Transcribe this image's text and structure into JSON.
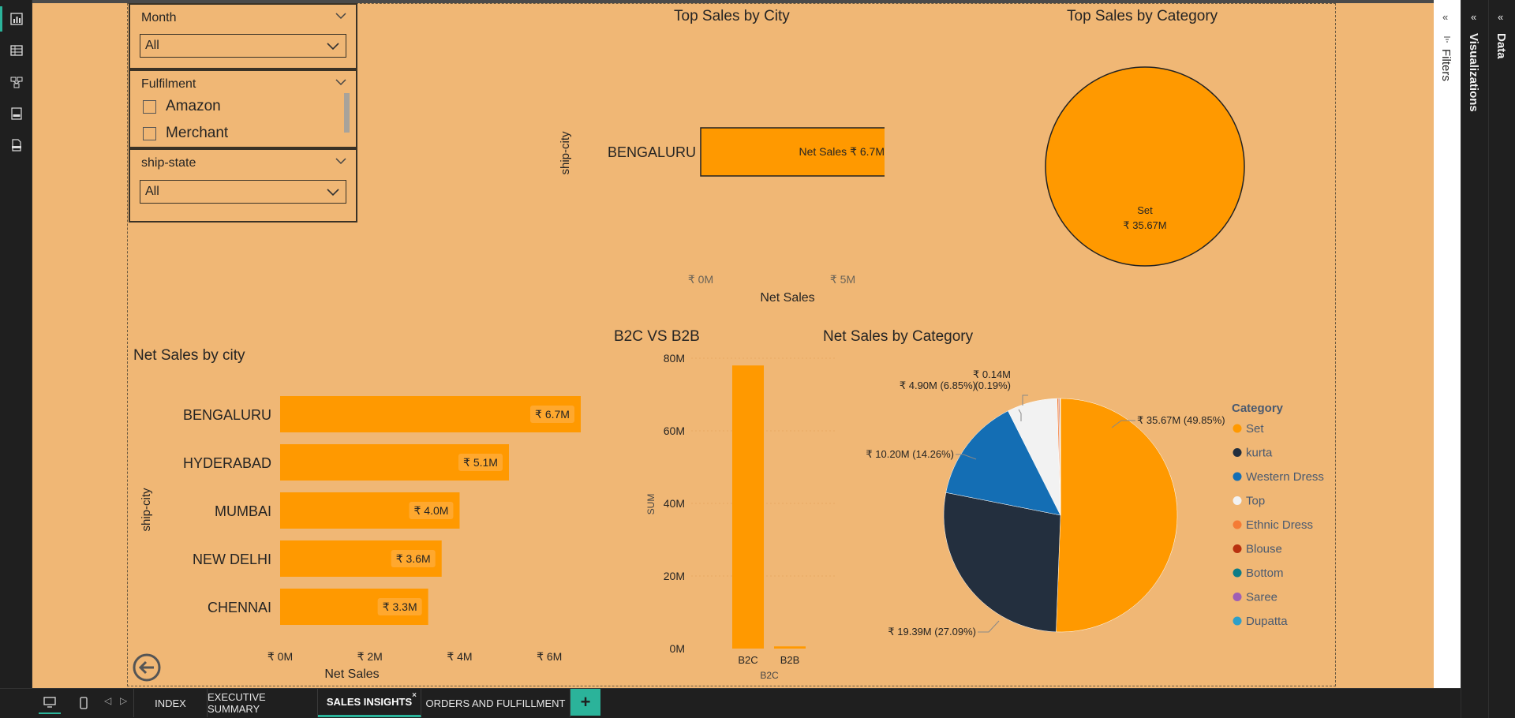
{
  "slicers": {
    "month": {
      "title": "Month",
      "value": "All"
    },
    "fulfilment": {
      "title": "Fulfilment",
      "options": [
        "Amazon",
        "Merchant"
      ]
    },
    "ship_state": {
      "title": "ship-state",
      "value": "All"
    }
  },
  "top_sales_city": {
    "title": "Top Sales by City",
    "y_axis_label": "ship-city",
    "x_axis_label": "Net Sales",
    "category": "BENGALURU",
    "bar_label": "Net Sales ₹ 6.7M",
    "ticks": [
      "₹ 0M",
      "₹ 5M"
    ]
  },
  "top_sales_category": {
    "title": "Top Sales by Category",
    "slice_name": "Set",
    "slice_value": "₹ 35.67M"
  },
  "net_sales_city": {
    "title": "Net Sales by city",
    "y_axis_label": "ship-city",
    "x_axis_label": "Net Sales",
    "ticks": [
      "₹ 0M",
      "₹ 2M",
      "₹ 4M",
      "₹ 6M"
    ],
    "bar_labels": [
      "₹ 6.7M",
      "₹ 5.1M",
      "₹ 4.0M",
      "₹ 3.6M",
      "₹ 3.3M"
    ]
  },
  "b2c_b2b": {
    "title": "B2C VS B2B",
    "y_axis_label": "SUM",
    "x_axis_label": "B2C",
    "ticks": [
      "0M",
      "20M",
      "40M",
      "60M",
      "80M"
    ]
  },
  "net_sales_category": {
    "title": "Net Sales by Category",
    "legend_title": "Category",
    "labels": {
      "set": "₹ 35.67M (49.85%)",
      "kurta": "₹ 19.39M (27.09%)",
      "western": "₹ 10.20M (14.26%)",
      "top": "₹ 4.90M (6.85%)",
      "ethnic_value": "₹ 0.14M",
      "ethnic_pct": "(0.19%)"
    }
  },
  "chart_data": [
    {
      "type": "bar",
      "orientation": "horizontal",
      "title": "Top Sales by City",
      "categories": [
        "BENGALURU"
      ],
      "values": [
        6.7
      ],
      "xlabel": "Net Sales",
      "ylabel": "ship-city",
      "xlim": [
        0,
        7
      ],
      "units": "₹ M"
    },
    {
      "type": "pie",
      "title": "Top Sales by Category",
      "categories": [
        "Set"
      ],
      "values": [
        35.67
      ],
      "units": "₹ M"
    },
    {
      "type": "bar",
      "orientation": "horizontal",
      "title": "Net Sales by city",
      "categories": [
        "BENGALURU",
        "HYDERABAD",
        "MUMBAI",
        "NEW DELHI",
        "CHENNAI"
      ],
      "values": [
        6.7,
        5.1,
        4.0,
        3.6,
        3.3
      ],
      "xlabel": "Net Sales",
      "ylabel": "ship-city",
      "xlim": [
        0,
        6.8
      ],
      "units": "₹ M"
    },
    {
      "type": "bar",
      "title": "B2C VS B2B",
      "categories": [
        "B2C",
        "B2B"
      ],
      "values": [
        78,
        0.6
      ],
      "xlabel": "B2C",
      "ylabel": "SUM",
      "ylim": [
        0,
        80
      ],
      "units": "M"
    },
    {
      "type": "pie",
      "title": "Net Sales by Category",
      "legend_title": "Category",
      "categories": [
        "Set",
        "kurta",
        "Western Dress",
        "Top",
        "Ethnic Dress",
        "Blouse",
        "Bottom",
        "Saree",
        "Dupatta"
      ],
      "values": [
        35.67,
        19.39,
        10.2,
        4.9,
        0.14,
        0.09,
        0.05,
        0.03,
        0.02
      ],
      "percentages": [
        49.85,
        27.09,
        14.26,
        6.85,
        0.19,
        0.13,
        0.07,
        0.04,
        0.03
      ],
      "colors": [
        "#ff9900",
        "#232f3e",
        "#146eb4",
        "#f2f2f2",
        "#f47b35",
        "#b8310f",
        "#0e7c86",
        "#9f5fb5",
        "#2e9fc9"
      ],
      "legend_position": "right"
    }
  ],
  "tabs": [
    "INDEX",
    "EXECUTIVE SUMMARY",
    "SALES INSIGHTS",
    "ORDERS AND FULFILLMENT"
  ],
  "tab_close": "×",
  "add_tab": "+",
  "panes": {
    "filters": "Filters",
    "visualizations": "Visualizations",
    "data": "Data"
  },
  "colors": {
    "canvas": "#f0b775",
    "bar": "#ff9900",
    "accent": "#2bb39a"
  },
  "icons": [
    "report-view-icon",
    "table-view-icon",
    "model-view-icon",
    "dax-query-icon",
    "tmdl-view-icon",
    "back-arrow-icon",
    "desktop-layout-icon",
    "mobile-layout-icon"
  ]
}
